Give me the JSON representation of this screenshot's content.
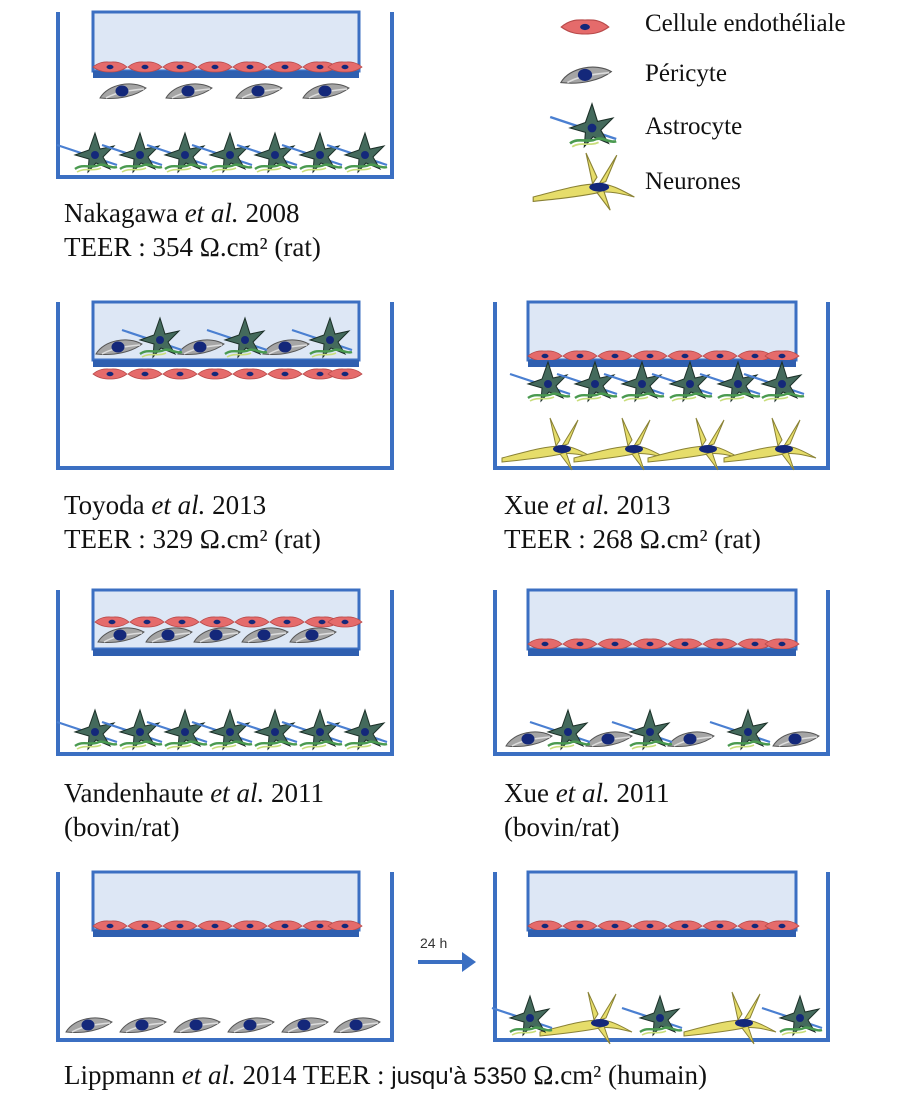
{
  "legend": {
    "endothelial": "Cellule endothéliale",
    "pericyte": "Péricyte",
    "astrocyte": "Astrocyte",
    "neuron": "Neurones"
  },
  "panels": {
    "nakagawa": {
      "author": "Nakagawa",
      "etal": "et al.",
      "year": "2008",
      "teer_prefix": "TEER : ",
      "teer_value": "354 Ω.cm² (rat)"
    },
    "toyoda": {
      "author": "Toyoda",
      "etal": "et al.",
      "year": "2013",
      "teer_prefix": "TEER : ",
      "teer_value": "329 Ω.cm² (rat)"
    },
    "xue2013": {
      "author": "Xue",
      "etal": "et al.",
      "year": "2013",
      "teer_prefix": "TEER : ",
      "teer_value": "268 Ω.cm² (rat)"
    },
    "vandenhaute": {
      "author": "Vandenhaute",
      "etal": "et al.",
      "year": "2011",
      "species": "(bovin/rat)"
    },
    "xue2011": {
      "author": "Xue",
      "etal": "et al.",
      "year": "2011",
      "species": "(bovin/rat)"
    },
    "lippmann": {
      "author": "Lippmann",
      "etal": "et al.",
      "year": "2014",
      "teer_prefix": "TEER : ",
      "teer_mid": "jusqu'à 5350",
      "teer_suffix": " Ω.cm² (humain)"
    }
  },
  "arrow": {
    "label": "24 h"
  },
  "colors": {
    "well": "#3b6fc2",
    "insert_fill": "#dde7f5",
    "membrane": "#2f5fb0",
    "endothelial": "#e56b6b",
    "pericyte": "#9a9a9a",
    "nucleus": "#14287a",
    "astrocyte": "#3e5f52",
    "neuron": "#e6dd6a"
  }
}
